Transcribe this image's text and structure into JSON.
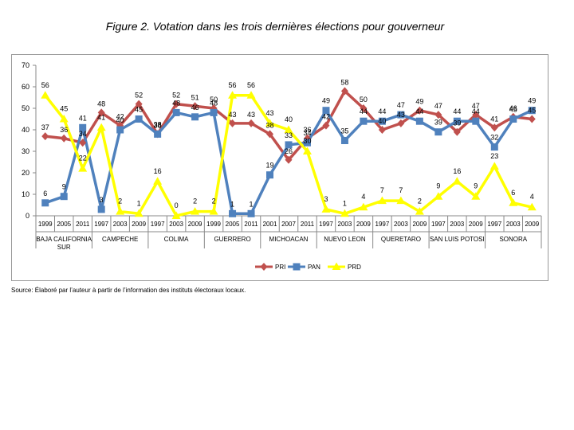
{
  "figure": {
    "title": "Figure 2. Votation dans les trois dernières élections pour gouverneur",
    "source": "Source: Élaboré par l’auteur à partir de l’information des instituts électoraux locaux."
  },
  "chart_data": {
    "type": "line",
    "title": "Figure 2. Votation dans les trois dernières élections pour gouverneur",
    "xlabel": "",
    "ylabel": "",
    "ylim": [
      0,
      70
    ],
    "yticks": [
      0,
      10,
      20,
      30,
      40,
      50,
      60,
      70
    ],
    "grid": false,
    "legend": "bottom",
    "x": [
      "1999",
      "2005",
      "2011",
      "1997",
      "2003",
      "2009",
      "1997",
      "2003",
      "2009",
      "1999",
      "2005",
      "2011",
      "2001",
      "2007",
      "2011",
      "1997",
      "2003",
      "2009",
      "1997",
      "2003",
      "2009",
      "1997",
      "2003",
      "2009",
      "1997",
      "2003",
      "2009"
    ],
    "groups": [
      {
        "name": "BAJA CALIFORNIA SUR",
        "lines": [
          "BAJA CALIFORNIA",
          "SUR"
        ],
        "count": 3
      },
      {
        "name": "CAMPECHE",
        "lines": [
          "CAMPECHE"
        ],
        "count": 3
      },
      {
        "name": "COLIMA",
        "lines": [
          "COLIMA"
        ],
        "count": 3
      },
      {
        "name": "GUERRERO",
        "lines": [
          "GUERRERO"
        ],
        "count": 3
      },
      {
        "name": "MICHOACAN",
        "lines": [
          "MICHOACAN"
        ],
        "count": 3
      },
      {
        "name": "NUEVO LEON",
        "lines": [
          "NUEVO LEON"
        ],
        "count": 3
      },
      {
        "name": "QUERETARO",
        "lines": [
          "QUERETARO"
        ],
        "count": 3
      },
      {
        "name": "SAN LUIS POTOSI",
        "lines": [
          "SAN LUIS POTOSI"
        ],
        "count": 3
      },
      {
        "name": "SONORA",
        "lines": [
          "SONORA"
        ],
        "count": 3
      }
    ],
    "series": [
      {
        "name": "PRI",
        "color": "#c0504d",
        "marker": "diamond",
        "values": [
          37,
          36,
          34,
          48,
          42,
          52,
          38,
          52,
          51,
          50,
          43,
          43,
          38,
          26,
          36,
          42,
          58,
          50,
          40,
          43,
          49,
          47,
          39,
          47,
          41,
          46,
          45
        ]
      },
      {
        "name": "PAN",
        "color": "#4f81bd",
        "marker": "square",
        "values": [
          6,
          9,
          41,
          3,
          40,
          45,
          38,
          48,
          46,
          48,
          1,
          1,
          19,
          33,
          34,
          49,
          35,
          44,
          44,
          47,
          44,
          39,
          44,
          44,
          32,
          45,
          49
        ]
      },
      {
        "name": "PRD",
        "color": "#ffff00",
        "marker": "triangle",
        "values": [
          56,
          45,
          22,
          41,
          2,
          1,
          16,
          0,
          2,
          2,
          56,
          56,
          43,
          40,
          30,
          3,
          1,
          4,
          7,
          7,
          2,
          9,
          16,
          9,
          23,
          6,
          4
        ]
      }
    ]
  }
}
